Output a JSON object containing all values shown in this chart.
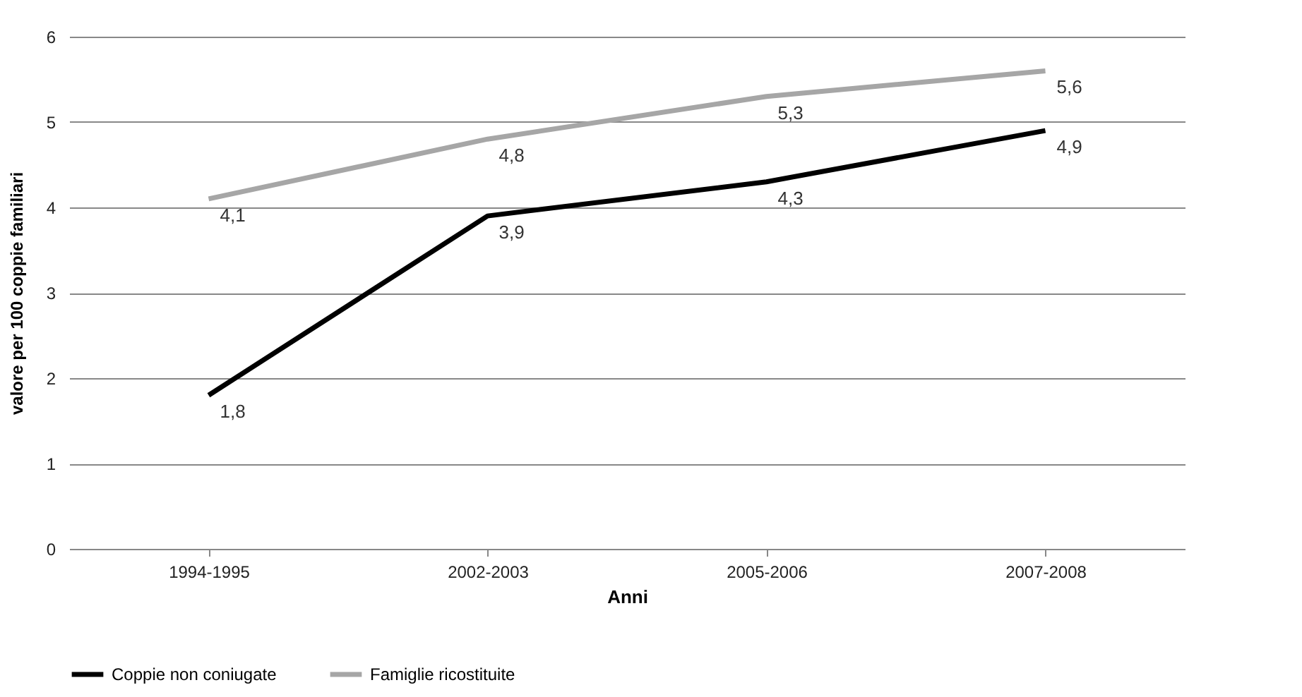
{
  "chart_data": {
    "type": "line",
    "xlabel": "Anni",
    "ylabel": "valore per 100 coppie familiari",
    "categories": [
      "1994-1995",
      "2002-2003",
      "2005-2006",
      "2007-2008"
    ],
    "series": [
      {
        "name": "Coppie non coniugate",
        "color": "#000000",
        "values": [
          1.8,
          3.9,
          4.3,
          4.9
        ],
        "value_labels": [
          "1,8",
          "3,9",
          "4,3",
          "4,9"
        ]
      },
      {
        "name": "Famiglie ricostituite",
        "color": "#a6a6a6",
        "values": [
          4.1,
          4.8,
          5.3,
          5.6
        ],
        "value_labels": [
          "4,1",
          "4,8",
          "5,3",
          "5,6"
        ]
      }
    ],
    "ylim": [
      0,
      6
    ],
    "yticks": [
      0,
      1,
      2,
      3,
      4,
      5,
      6
    ],
    "grid": "y",
    "legend": "bottom"
  }
}
